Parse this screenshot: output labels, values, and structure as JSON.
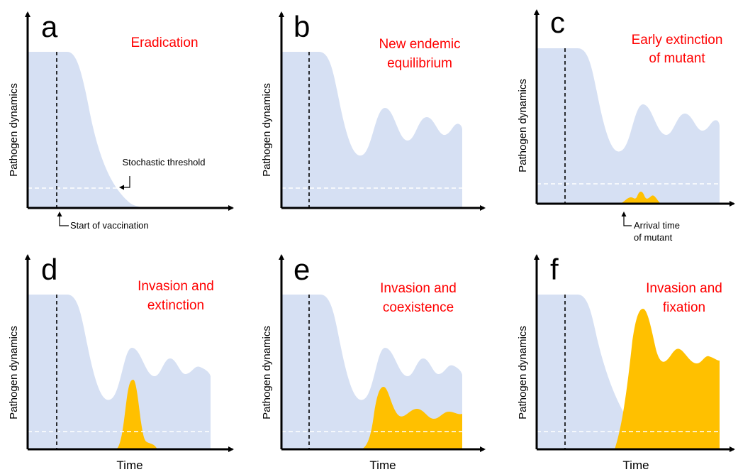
{
  "colors": {
    "resident": "#d6e0f3",
    "mutant": "#ffc000",
    "title": "#ff0000",
    "axis": "#000000",
    "threshold": "#ffffff"
  },
  "panels": [
    {
      "letter": "a",
      "title": [
        "Eradication"
      ],
      "ylabel": "Pathogen dynamics",
      "xlabel": ""
    },
    {
      "letter": "b",
      "title": [
        "New endemic",
        "equilibrium"
      ],
      "ylabel": "Pathogen dynamics",
      "xlabel": ""
    },
    {
      "letter": "c",
      "title": [
        "Early extinction",
        "of mutant"
      ],
      "ylabel": "Pathogen dynamics",
      "xlabel": ""
    },
    {
      "letter": "d",
      "title": [
        "Invasion and",
        "extinction"
      ],
      "ylabel": "Pathogen dynamics",
      "xlabel": "Time"
    },
    {
      "letter": "e",
      "title": [
        "Invasion and",
        "coexistence"
      ],
      "ylabel": "Pathogen dynamics",
      "xlabel": "Time"
    },
    {
      "letter": "f",
      "title": [
        "Invasion and",
        "fixation"
      ],
      "ylabel": "Pathogen dynamics",
      "xlabel": "Time"
    }
  ],
  "annotations": {
    "threshold": "Stochastic threshold",
    "vaccination": "Start of vaccination",
    "arrival": [
      "Arrival time",
      "of mutant"
    ]
  }
}
